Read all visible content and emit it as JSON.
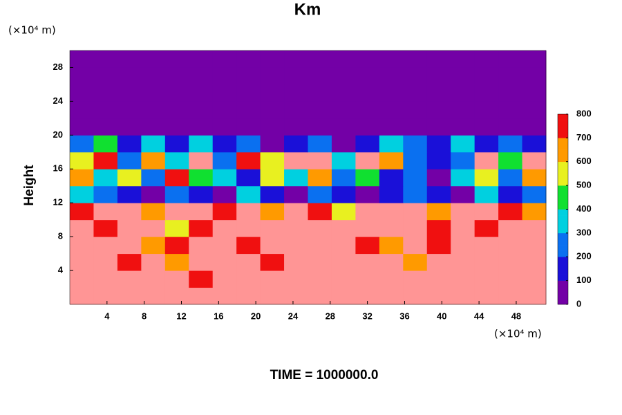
{
  "chart_data": {
    "type": "heatmap",
    "title": "Km",
    "footer": "TIME = 1000000.0",
    "y_label": "Height",
    "x_unit": "(×10⁴ m)",
    "y_unit": "(×10⁴ m)",
    "xlim": [
      0,
      51.2
    ],
    "ylim": [
      0,
      30
    ],
    "xticks": [
      4,
      8,
      12,
      16,
      20,
      24,
      28,
      32,
      36,
      40,
      44,
      48
    ],
    "yticks": [
      4,
      8,
      12,
      16,
      20,
      24,
      28
    ],
    "zlim": [
      0,
      800
    ],
    "zticks": [
      0,
      100,
      200,
      300,
      400,
      500,
      600,
      700,
      800
    ],
    "colorscale": [
      [
        0,
        "#7300a6"
      ],
      [
        100,
        "#1a10d8"
      ],
      [
        200,
        "#0a70f0"
      ],
      [
        300,
        "#00d0e0"
      ],
      [
        400,
        "#10e030"
      ],
      [
        500,
        "#e8f020"
      ],
      [
        600,
        "#ff9a00"
      ],
      [
        700,
        "#f01010"
      ],
      [
        800,
        "#ff9595"
      ]
    ],
    "x": [
      1.28,
      3.84,
      6.4,
      8.96,
      11.52,
      14.08,
      16.64,
      19.2,
      21.76,
      24.32,
      26.88,
      29.44,
      32,
      34.56,
      37.12,
      39.68,
      42.24,
      44.8,
      47.36,
      49.92
    ],
    "y": [
      1,
      3,
      5,
      7,
      9,
      11,
      13,
      15,
      17,
      19,
      21,
      23,
      25,
      27,
      29
    ],
    "z": [
      [
        800,
        800,
        800,
        800,
        800,
        800,
        800,
        800,
        800,
        800,
        800,
        800,
        800,
        800,
        800,
        800,
        800,
        800,
        800,
        800
      ],
      [
        800,
        800,
        800,
        800,
        800,
        700,
        800,
        800,
        800,
        800,
        800,
        800,
        800,
        800,
        800,
        800,
        800,
        800,
        800,
        800
      ],
      [
        800,
        800,
        700,
        800,
        600,
        800,
        800,
        800,
        700,
        800,
        800,
        800,
        800,
        800,
        600,
        800,
        800,
        800,
        800,
        800
      ],
      [
        800,
        800,
        800,
        600,
        700,
        800,
        800,
        700,
        800,
        800,
        800,
        800,
        700,
        600,
        800,
        700,
        800,
        800,
        800,
        800
      ],
      [
        800,
        700,
        800,
        800,
        500,
        700,
        800,
        800,
        800,
        800,
        800,
        800,
        800,
        800,
        800,
        700,
        800,
        700,
        800,
        800
      ],
      [
        700,
        800,
        800,
        600,
        800,
        800,
        700,
        800,
        600,
        800,
        700,
        500,
        800,
        800,
        800,
        600,
        800,
        800,
        700,
        600
      ],
      [
        300,
        200,
        100,
        0,
        200,
        100,
        0,
        300,
        100,
        0,
        200,
        100,
        0,
        100,
        200,
        100,
        0,
        300,
        100,
        200
      ],
      [
        600,
        300,
        500,
        200,
        700,
        400,
        300,
        100,
        500,
        300,
        600,
        200,
        400,
        100,
        200,
        0,
        300,
        500,
        200,
        600
      ],
      [
        500,
        700,
        200,
        600,
        300,
        800,
        200,
        700,
        500,
        800,
        800,
        300,
        800,
        600,
        200,
        100,
        200,
        800,
        400,
        800
      ],
      [
        200,
        400,
        100,
        300,
        100,
        300,
        100,
        200,
        0,
        100,
        200,
        0,
        100,
        300,
        200,
        100,
        300,
        100,
        200,
        100
      ],
      [
        0,
        0,
        0,
        0,
        0,
        0,
        0,
        0,
        0,
        0,
        0,
        0,
        0,
        0,
        0,
        0,
        0,
        0,
        0,
        0
      ],
      [
        0,
        0,
        0,
        0,
        0,
        0,
        0,
        0,
        0,
        0,
        0,
        0,
        0,
        0,
        0,
        0,
        0,
        0,
        0,
        0
      ],
      [
        0,
        0,
        0,
        0,
        0,
        0,
        0,
        0,
        0,
        0,
        0,
        0,
        0,
        0,
        0,
        0,
        0,
        0,
        0,
        0
      ],
      [
        0,
        0,
        0,
        0,
        0,
        0,
        0,
        0,
        0,
        0,
        0,
        0,
        0,
        0,
        0,
        0,
        0,
        0,
        0,
        0
      ],
      [
        0,
        0,
        0,
        0,
        0,
        0,
        0,
        0,
        0,
        0,
        0,
        0,
        0,
        0,
        0,
        0,
        0,
        0,
        0,
        0
      ]
    ]
  }
}
